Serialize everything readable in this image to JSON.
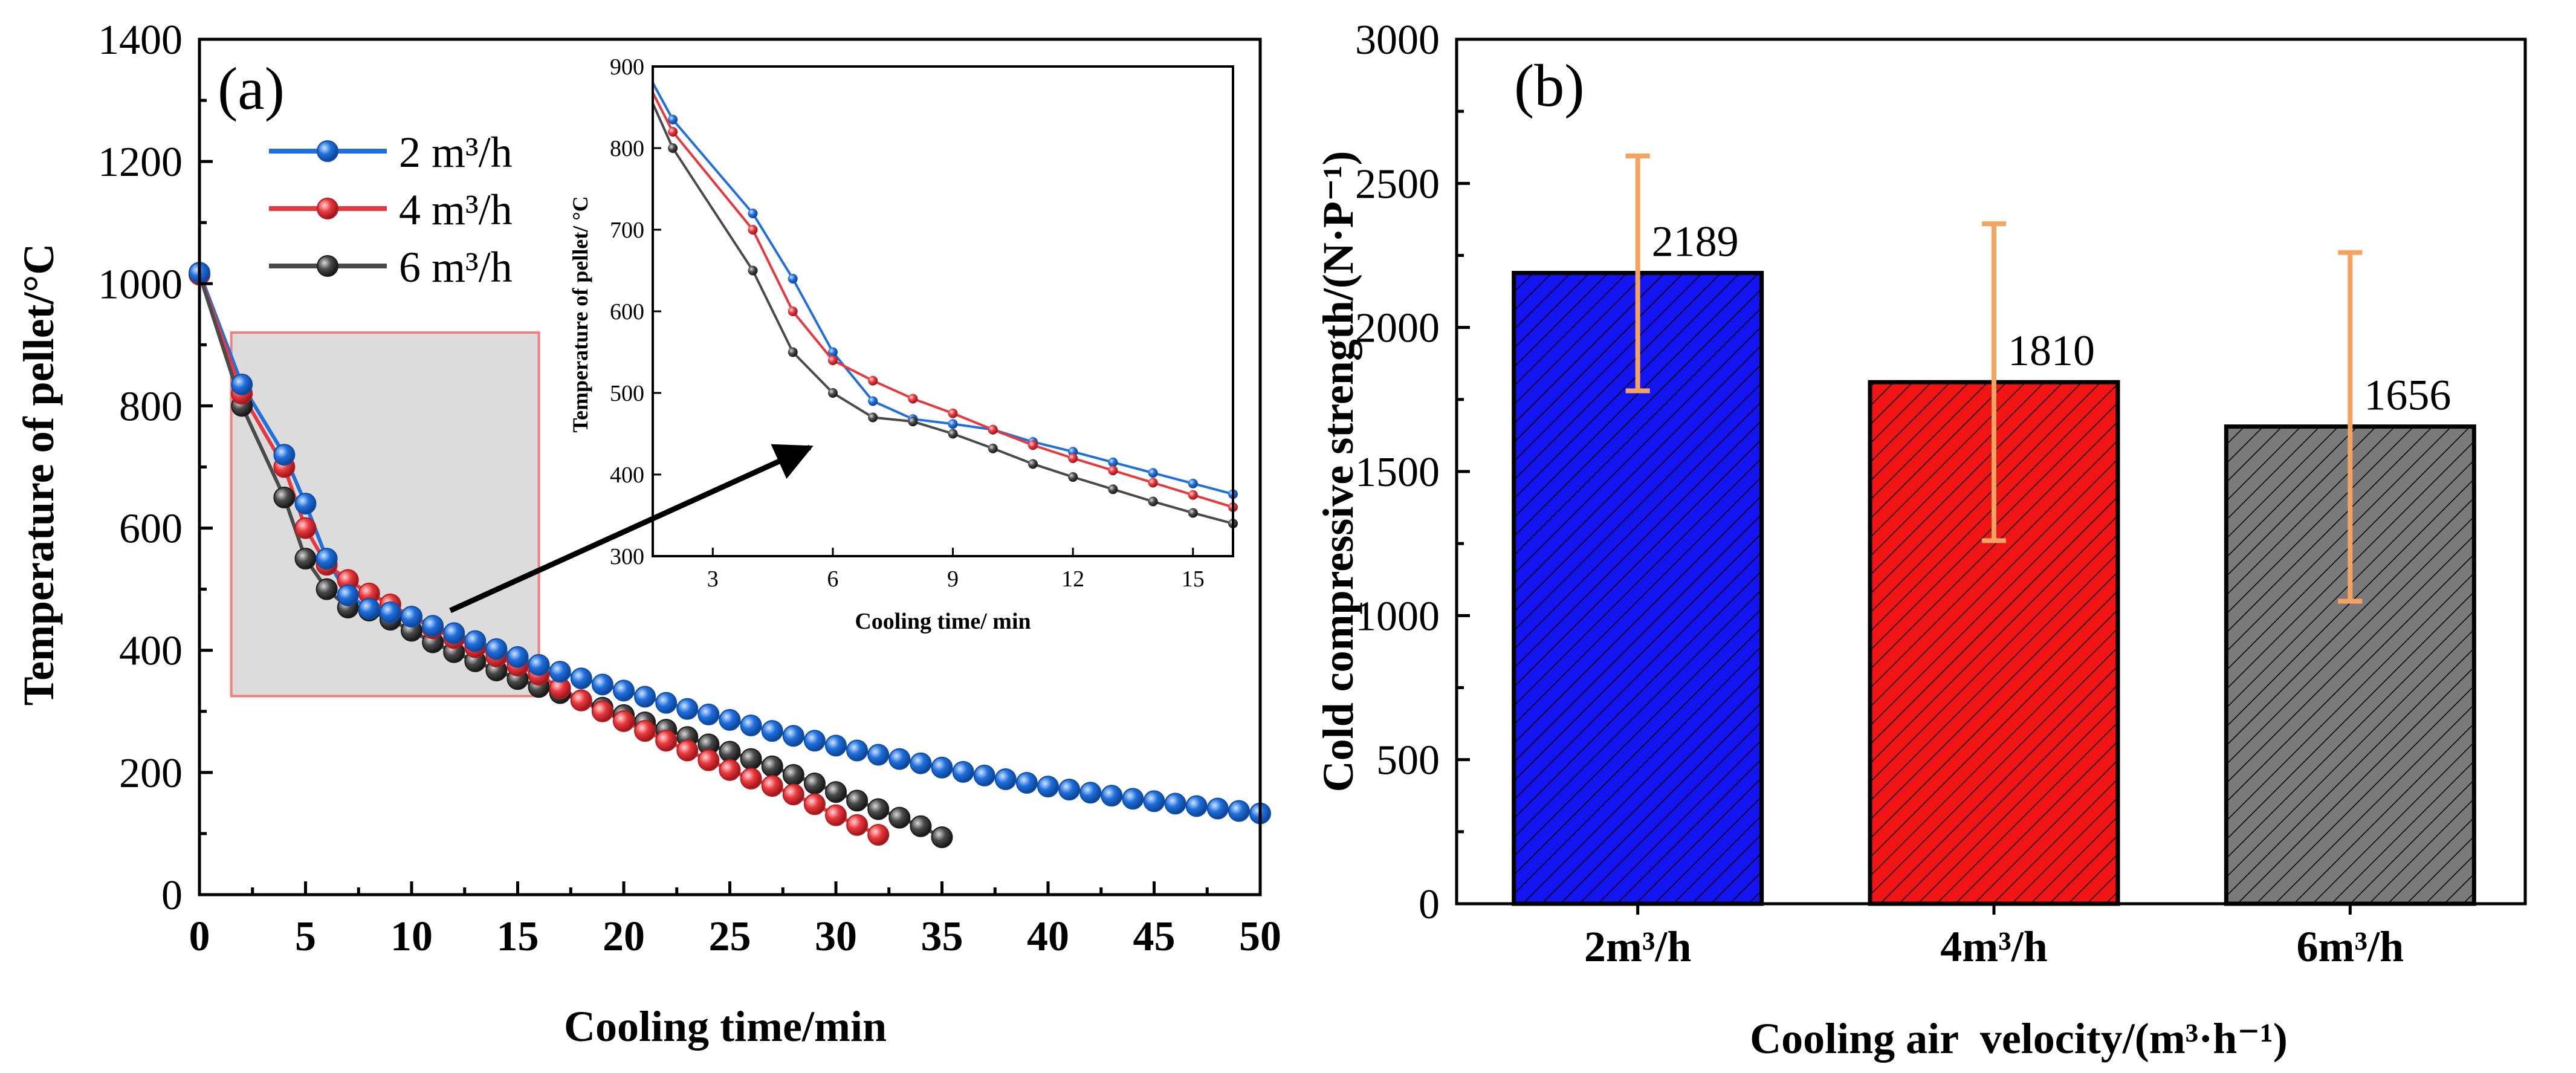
{
  "chart_data": [
    {
      "panel_label": "(a)",
      "type": "line",
      "xlabel": "Cooling time/min",
      "ylabel": "Temperature of pellet/°C",
      "xlim": [
        0,
        50
      ],
      "ylim": [
        0,
        1400
      ],
      "xticks": [
        "0",
        "5",
        "10",
        "15",
        "20",
        "25",
        "30",
        "35",
        "40",
        "45",
        "50"
      ],
      "yticks": [
        "0",
        "200",
        "400",
        "600",
        "800",
        "1000",
        "1200",
        "1400"
      ],
      "legend": {
        "placement": "top-left"
      },
      "highlight_region": {
        "x": [
          1.5,
          16
        ],
        "y": [
          325,
          920
        ]
      },
      "series": [
        {
          "name": "2 m³/h",
          "color": "#1f6fdc",
          "edge": "#0e4ea8",
          "x": [
            0,
            2,
            4,
            5,
            6,
            7,
            8,
            9,
            10,
            11,
            12,
            13,
            14,
            15,
            16,
            17,
            18,
            19,
            20,
            21,
            22,
            23,
            24,
            25,
            26,
            27,
            28,
            29,
            30,
            31,
            32,
            33,
            34,
            35,
            36,
            37,
            38,
            39,
            40,
            41,
            42,
            43,
            44,
            45,
            46,
            47,
            48,
            49,
            50
          ],
          "y": [
            1018,
            835,
            720,
            640,
            550,
            490,
            468,
            462,
            455,
            440,
            428,
            415,
            402,
            389,
            376,
            365,
            354,
            344,
            334,
            324,
            314,
            304,
            295,
            286,
            277,
            268,
            260,
            252,
            244,
            236,
            229,
            222,
            215,
            208,
            201,
            195,
            189,
            183,
            177,
            172,
            167,
            162,
            157,
            153,
            149,
            145,
            141,
            137,
            133
          ]
        },
        {
          "name": "4 m³/h",
          "color": "#e8383d",
          "edge": "#b51d22",
          "x": [
            0,
            2,
            4,
            5,
            6,
            7,
            8,
            9,
            10,
            11,
            12,
            13,
            14,
            15,
            16,
            17,
            18,
            19,
            20,
            21,
            22,
            23,
            24,
            25,
            26,
            27,
            28,
            29,
            30,
            31,
            32
          ],
          "y": [
            1015,
            820,
            700,
            600,
            540,
            515,
            493,
            475,
            455,
            436,
            420,
            405,
            390,
            375,
            360,
            338,
            318,
            300,
            284,
            268,
            252,
            236,
            220,
            204,
            190,
            178,
            164,
            148,
            130,
            114,
            98
          ]
        },
        {
          "name": "6 m³/h",
          "color": "#4a4a4a",
          "edge": "#1c1c1c",
          "x": [
            0,
            2,
            4,
            5,
            6,
            7,
            8,
            9,
            10,
            11,
            12,
            13,
            14,
            15,
            16,
            17,
            18,
            19,
            20,
            21,
            22,
            23,
            24,
            25,
            26,
            27,
            28,
            29,
            30,
            31,
            32,
            33,
            34,
            35
          ],
          "y": [
            1015,
            800,
            650,
            550,
            500,
            470,
            465,
            450,
            432,
            413,
            397,
            382,
            367,
            353,
            340,
            330,
            318,
            306,
            294,
            282,
            270,
            258,
            246,
            234,
            222,
            210,
            196,
            182,
            168,
            154,
            140,
            126,
            112,
            94
          ]
        }
      ],
      "inset": {
        "xlabel": "Cooling time/ min",
        "ylabel": "Temperature of pellet/ °C",
        "xlim": [
          1.5,
          16
        ],
        "ylim": [
          300,
          900
        ],
        "xticks": [
          "3",
          "6",
          "9",
          "12",
          "15"
        ],
        "yticks": [
          "300",
          "400",
          "500",
          "600",
          "700",
          "800",
          "900"
        ],
        "series": [
          {
            "name": "2 m³/h",
            "color": "#1f6fdc",
            "x": [
              1.5,
              2,
              4,
              5,
              6,
              7,
              8,
              9,
              10,
              11,
              12,
              13,
              14,
              15,
              16
            ],
            "y": [
              880,
              835,
              720,
              640,
              550,
              490,
              468,
              462,
              455,
              440,
              428,
              415,
              402,
              389,
              376
            ]
          },
          {
            "name": "4 m³/h",
            "color": "#e8383d",
            "x": [
              1.5,
              2,
              4,
              5,
              6,
              7,
              8,
              9,
              10,
              11,
              12,
              13,
              14,
              15,
              16
            ],
            "y": [
              868,
              820,
              700,
              600,
              540,
              515,
              493,
              475,
              455,
              436,
              420,
              405,
              390,
              375,
              360
            ]
          },
          {
            "name": "6 m³/h",
            "color": "#4a4a4a",
            "x": [
              1.5,
              2,
              4,
              5,
              6,
              7,
              8,
              9,
              10,
              11,
              12,
              13,
              14,
              15,
              16
            ],
            "y": [
              855,
              800,
              650,
              550,
              500,
              470,
              465,
              450,
              432,
              413,
              397,
              382,
              367,
              353,
              340
            ]
          }
        ]
      }
    },
    {
      "panel_label": "(b)",
      "type": "bar",
      "xlabel": "Cooling air  velocity/(m³·h⁻¹)",
      "ylabel": "Cold compressive strength/(N·P⁻¹)",
      "ylim": [
        0,
        3000
      ],
      "yticks": [
        "0",
        "500",
        "1000",
        "1500",
        "2000",
        "2500",
        "3000"
      ],
      "categories": [
        "2m³/h",
        "4m³/h",
        "6m³/h"
      ],
      "values": [
        2189,
        1810,
        1656
      ],
      "value_labels": [
        "2189",
        "1810",
        "1656"
      ],
      "error_low": [
        1780,
        1260,
        1050
      ],
      "error_high": [
        2595,
        2360,
        2260
      ],
      "bar_colors": [
        "#1414f0",
        "#f01414",
        "#7a7a7a"
      ],
      "error_color": "#f4a460"
    }
  ]
}
